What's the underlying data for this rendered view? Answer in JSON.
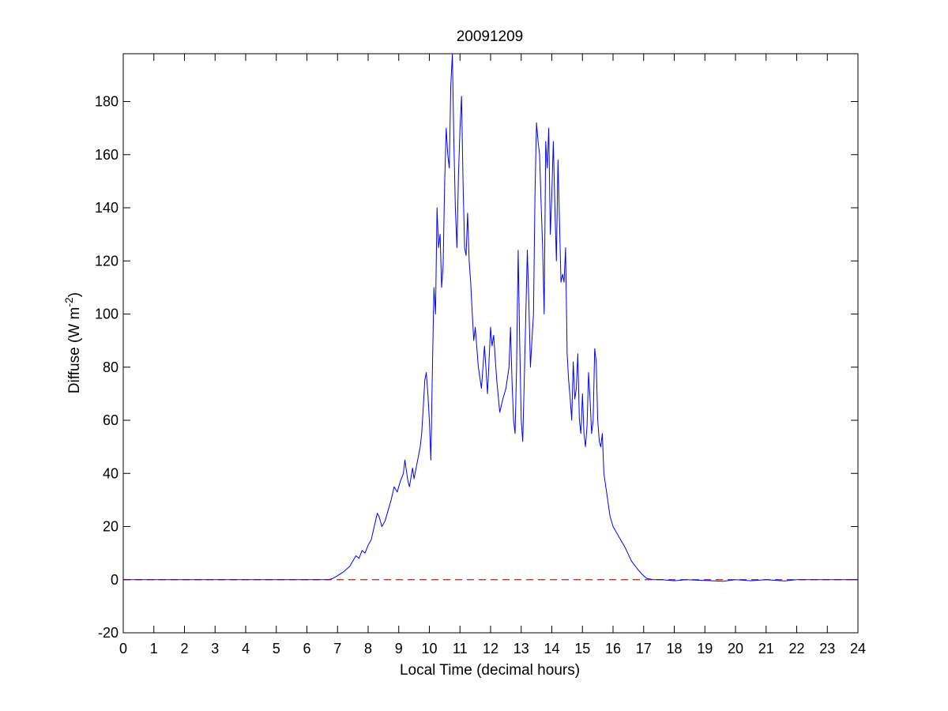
{
  "chart_data": {
    "type": "line",
    "title": "20091209",
    "xlabel": "Local Time (decimal hours)",
    "ylabel": {
      "prefix": "Diffuse (W m",
      "superscript": "-2",
      "suffix": ")"
    },
    "xlim": [
      0,
      24
    ],
    "ylim": [
      -20,
      198
    ],
    "xticks": [
      0,
      1,
      2,
      3,
      4,
      5,
      6,
      7,
      8,
      9,
      10,
      11,
      12,
      13,
      14,
      15,
      16,
      17,
      18,
      19,
      20,
      21,
      22,
      23,
      24
    ],
    "yticks": [
      -20,
      0,
      20,
      40,
      60,
      80,
      100,
      120,
      140,
      160,
      180
    ],
    "grid": false,
    "legend": "none",
    "reference_line": {
      "y": 0,
      "style": "dashed",
      "color": "#ff0000"
    },
    "series": [
      {
        "color": "#0000ff",
        "x": [
          0,
          6.7,
          6.85,
          7.0,
          7.2,
          7.4,
          7.5,
          7.6,
          7.7,
          7.8,
          7.9,
          8.0,
          8.1,
          8.2,
          8.3,
          8.35,
          8.45,
          8.55,
          8.65,
          8.75,
          8.85,
          8.95,
          9.05,
          9.15,
          9.2,
          9.3,
          9.35,
          9.45,
          9.5,
          9.6,
          9.7,
          9.75,
          9.8,
          9.85,
          9.9,
          9.95,
          10.0,
          10.05,
          10.1,
          10.15,
          10.2,
          10.25,
          10.3,
          10.35,
          10.4,
          10.45,
          10.5,
          10.55,
          10.6,
          10.65,
          10.7,
          10.75,
          10.8,
          10.85,
          10.9,
          10.95,
          11.0,
          11.05,
          11.1,
          11.15,
          11.2,
          11.25,
          11.3,
          11.35,
          11.4,
          11.45,
          11.5,
          11.6,
          11.7,
          11.8,
          11.9,
          12.0,
          12.05,
          12.1,
          12.2,
          12.3,
          12.4,
          12.5,
          12.6,
          12.65,
          12.7,
          12.75,
          12.8,
          12.85,
          12.9,
          12.95,
          13.0,
          13.05,
          13.1,
          13.15,
          13.2,
          13.25,
          13.3,
          13.35,
          13.4,
          13.45,
          13.5,
          13.55,
          13.6,
          13.65,
          13.7,
          13.75,
          13.8,
          13.85,
          13.9,
          13.95,
          14.0,
          14.05,
          14.1,
          14.15,
          14.2,
          14.25,
          14.3,
          14.35,
          14.4,
          14.45,
          14.5,
          14.55,
          14.6,
          14.65,
          14.7,
          14.75,
          14.8,
          14.85,
          14.9,
          14.95,
          15.0,
          15.05,
          15.1,
          15.15,
          15.2,
          15.25,
          15.3,
          15.35,
          15.4,
          15.45,
          15.5,
          15.55,
          15.6,
          15.65,
          15.7,
          15.8,
          15.9,
          16.0,
          16.2,
          16.4,
          16.6,
          16.8,
          16.95,
          17.1,
          17.3,
          17.6,
          18.0,
          18.4,
          19.0,
          19.6,
          20.0,
          20.5,
          21.0,
          21.6,
          22.0,
          23.0,
          24.0
        ],
        "y": [
          0,
          0,
          0.5,
          1.5,
          3,
          5,
          7,
          9,
          8,
          11,
          10,
          13,
          15,
          20,
          25,
          24,
          20,
          22,
          26,
          30,
          35,
          33,
          37,
          40,
          45,
          37,
          35,
          42,
          38,
          44,
          50,
          55,
          65,
          75,
          78,
          70,
          60,
          45,
          80,
          110,
          100,
          140,
          125,
          130,
          110,
          118,
          150,
          170,
          160,
          155,
          186,
          198,
          165,
          140,
          125,
          152,
          170,
          182,
          150,
          125,
          122,
          138,
          120,
          112,
          100,
          90,
          95,
          80,
          72,
          88,
          70,
          95,
          88,
          92,
          75,
          63,
          68,
          72,
          80,
          95,
          75,
          60,
          55,
          80,
          124,
          90,
          60,
          52,
          75,
          100,
          124,
          105,
          80,
          90,
          100,
          145,
          172,
          165,
          160,
          142,
          125,
          100,
          165,
          155,
          170,
          130,
          145,
          165,
          140,
          120,
          158,
          135,
          112,
          115,
          112,
          125,
          85,
          75,
          68,
          60,
          82,
          68,
          72,
          85,
          60,
          55,
          70,
          55,
          50,
          58,
          78,
          68,
          55,
          60,
          87,
          82,
          60,
          52,
          50,
          55,
          40,
          32,
          24,
          20,
          16,
          12,
          7,
          4,
          2,
          0.5,
          0,
          0,
          -0.4,
          0,
          -0.3,
          -0.6,
          0,
          -0.4,
          0,
          -0.5,
          0,
          0,
          0
        ]
      }
    ]
  }
}
